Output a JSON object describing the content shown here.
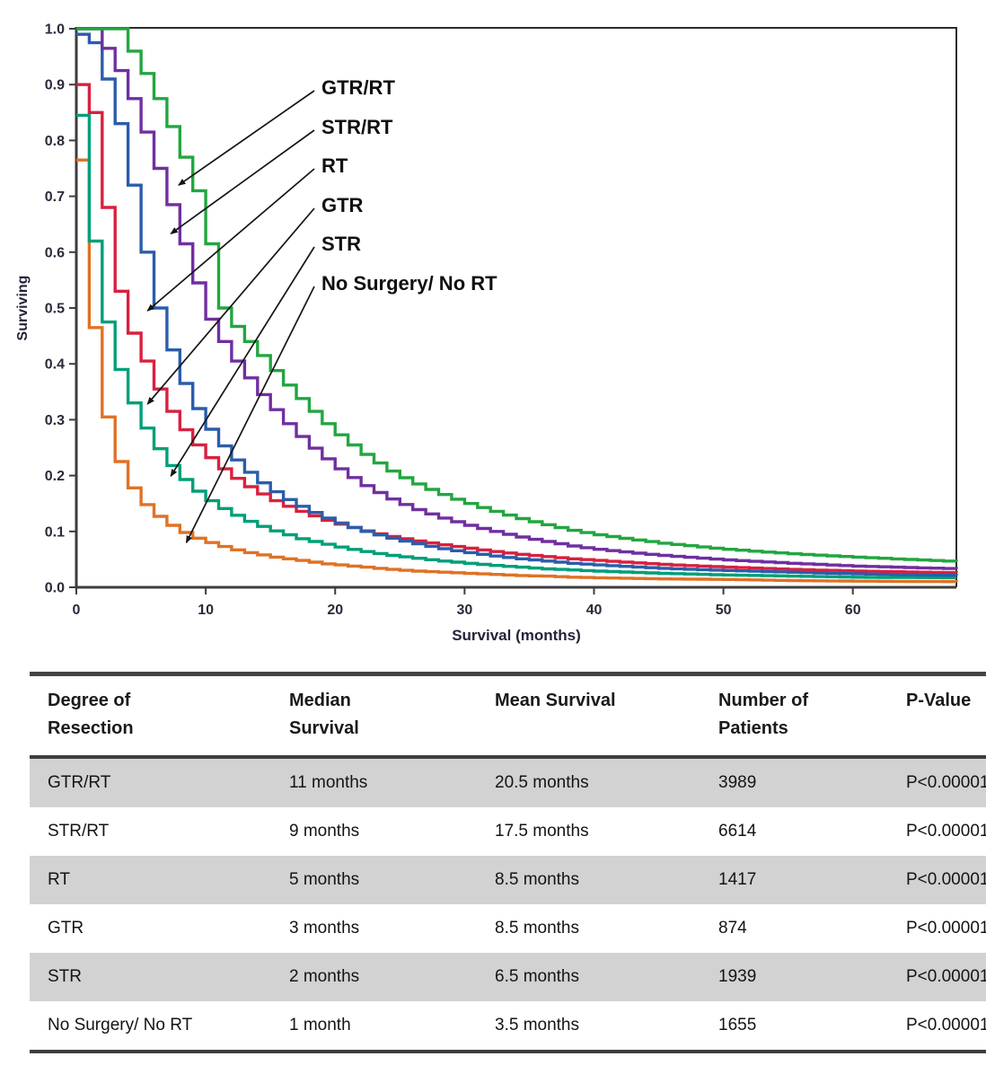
{
  "chart_data": {
    "type": "line",
    "subtype": "kaplan_meier_step_curves",
    "title": "",
    "xlabel": "Survival (months)",
    "ylabel": "Surviving",
    "xlim": [
      0,
      68
    ],
    "ylim": [
      0.0,
      1.0
    ],
    "grid": false,
    "legend_position": "inline-arrow-annotations",
    "xticks": [
      0,
      10,
      20,
      30,
      40,
      50,
      60
    ],
    "xtick_labels": [
      "0",
      "10",
      "20",
      "30",
      "40",
      "50",
      "60"
    ],
    "yticks": [
      0.0,
      0.1,
      0.2,
      0.3,
      0.4,
      0.5,
      0.6,
      0.7,
      0.8,
      0.9,
      1.0
    ],
    "ytick_labels": [
      "0.0",
      "0.1",
      "0.2",
      "0.3",
      "0.4",
      "0.5",
      "0.6",
      "0.7",
      "0.8",
      "0.9",
      "1.0"
    ],
    "series": [
      {
        "name": "GTR/RT",
        "color": "#22a640",
        "median_months": 11,
        "points": [
          [
            0,
            1.0
          ],
          [
            3,
            1.0
          ],
          [
            4,
            0.96
          ],
          [
            5,
            0.92
          ],
          [
            6,
            0.875
          ],
          [
            7,
            0.825
          ],
          [
            8,
            0.77
          ],
          [
            9,
            0.71
          ],
          [
            10,
            0.615
          ],
          [
            11,
            0.5
          ],
          [
            12,
            0.467
          ],
          [
            13,
            0.44
          ],
          [
            14,
            0.415
          ],
          [
            15,
            0.388
          ],
          [
            16,
            0.362
          ],
          [
            17,
            0.338
          ],
          [
            18,
            0.315
          ],
          [
            19,
            0.293
          ],
          [
            20,
            0.273
          ],
          [
            22,
            0.238
          ],
          [
            24,
            0.208
          ],
          [
            26,
            0.185
          ],
          [
            28,
            0.166
          ],
          [
            30,
            0.15
          ],
          [
            32,
            0.136
          ],
          [
            34,
            0.123
          ],
          [
            36,
            0.112
          ],
          [
            38,
            0.102
          ],
          [
            40,
            0.094
          ],
          [
            45,
            0.079
          ],
          [
            50,
            0.068
          ],
          [
            55,
            0.06
          ],
          [
            60,
            0.054
          ],
          [
            68,
            0.046
          ]
        ]
      },
      {
        "name": "STR/RT",
        "color": "#6f2fa0",
        "median_months": 9,
        "points": [
          [
            0,
            1.0
          ],
          [
            1,
            1.0
          ],
          [
            2,
            0.965
          ],
          [
            3,
            0.925
          ],
          [
            4,
            0.875
          ],
          [
            5,
            0.815
          ],
          [
            6,
            0.75
          ],
          [
            7,
            0.685
          ],
          [
            8,
            0.615
          ],
          [
            9,
            0.545
          ],
          [
            10,
            0.48
          ],
          [
            11,
            0.44
          ],
          [
            12,
            0.405
          ],
          [
            13,
            0.375
          ],
          [
            14,
            0.345
          ],
          [
            15,
            0.318
          ],
          [
            16,
            0.293
          ],
          [
            17,
            0.27
          ],
          [
            18,
            0.249
          ],
          [
            19,
            0.23
          ],
          [
            20,
            0.212
          ],
          [
            22,
            0.182
          ],
          [
            24,
            0.158
          ],
          [
            26,
            0.139
          ],
          [
            28,
            0.124
          ],
          [
            30,
            0.111
          ],
          [
            32,
            0.1
          ],
          [
            34,
            0.09
          ],
          [
            36,
            0.082
          ],
          [
            38,
            0.074
          ],
          [
            40,
            0.068
          ],
          [
            45,
            0.057
          ],
          [
            50,
            0.049
          ],
          [
            55,
            0.043
          ],
          [
            60,
            0.038
          ],
          [
            68,
            0.033
          ]
        ]
      },
      {
        "name": "RT",
        "color": "#2a5dab",
        "median_months": 5,
        "points": [
          [
            0,
            0.99
          ],
          [
            1,
            0.975
          ],
          [
            2,
            0.91
          ],
          [
            3,
            0.83
          ],
          [
            4,
            0.72
          ],
          [
            5,
            0.6
          ],
          [
            6,
            0.5
          ],
          [
            7,
            0.425
          ],
          [
            8,
            0.365
          ],
          [
            9,
            0.32
          ],
          [
            10,
            0.283
          ],
          [
            11,
            0.253
          ],
          [
            12,
            0.228
          ],
          [
            13,
            0.206
          ],
          [
            14,
            0.187
          ],
          [
            15,
            0.171
          ],
          [
            16,
            0.157
          ],
          [
            17,
            0.145
          ],
          [
            18,
            0.134
          ],
          [
            19,
            0.124
          ],
          [
            20,
            0.115
          ],
          [
            22,
            0.1
          ],
          [
            24,
            0.088
          ],
          [
            26,
            0.078
          ],
          [
            28,
            0.069
          ],
          [
            30,
            0.062
          ],
          [
            32,
            0.056
          ],
          [
            34,
            0.051
          ],
          [
            36,
            0.047
          ],
          [
            38,
            0.043
          ],
          [
            40,
            0.04
          ],
          [
            45,
            0.034
          ],
          [
            50,
            0.03
          ],
          [
            55,
            0.027
          ],
          [
            60,
            0.024
          ],
          [
            68,
            0.021
          ]
        ]
      },
      {
        "name": "GTR",
        "color": "#d9203f",
        "median_months": 3,
        "points": [
          [
            0,
            0.9
          ],
          [
            1,
            0.85
          ],
          [
            2,
            0.68
          ],
          [
            3,
            0.53
          ],
          [
            4,
            0.455
          ],
          [
            5,
            0.405
          ],
          [
            6,
            0.355
          ],
          [
            7,
            0.315
          ],
          [
            8,
            0.282
          ],
          [
            9,
            0.255
          ],
          [
            10,
            0.232
          ],
          [
            11,
            0.212
          ],
          [
            12,
            0.195
          ],
          [
            13,
            0.18
          ],
          [
            14,
            0.167
          ],
          [
            15,
            0.155
          ],
          [
            16,
            0.145
          ],
          [
            17,
            0.136
          ],
          [
            18,
            0.128
          ],
          [
            19,
            0.12
          ],
          [
            20,
            0.113
          ],
          [
            22,
            0.101
          ],
          [
            24,
            0.091
          ],
          [
            26,
            0.083
          ],
          [
            28,
            0.076
          ],
          [
            30,
            0.07
          ],
          [
            32,
            0.064
          ],
          [
            34,
            0.059
          ],
          [
            36,
            0.055
          ],
          [
            38,
            0.051
          ],
          [
            40,
            0.048
          ],
          [
            45,
            0.041
          ],
          [
            50,
            0.036
          ],
          [
            55,
            0.032
          ],
          [
            60,
            0.029
          ],
          [
            68,
            0.026
          ]
        ]
      },
      {
        "name": "STR",
        "color": "#009f78",
        "median_months": 2,
        "points": [
          [
            0,
            0.845
          ],
          [
            1,
            0.62
          ],
          [
            2,
            0.475
          ],
          [
            3,
            0.39
          ],
          [
            4,
            0.33
          ],
          [
            5,
            0.285
          ],
          [
            6,
            0.248
          ],
          [
            7,
            0.218
          ],
          [
            8,
            0.193
          ],
          [
            9,
            0.172
          ],
          [
            10,
            0.155
          ],
          [
            11,
            0.141
          ],
          [
            12,
            0.129
          ],
          [
            13,
            0.118
          ],
          [
            14,
            0.109
          ],
          [
            15,
            0.101
          ],
          [
            16,
            0.094
          ],
          [
            17,
            0.087
          ],
          [
            18,
            0.082
          ],
          [
            19,
            0.077
          ],
          [
            20,
            0.072
          ],
          [
            22,
            0.064
          ],
          [
            24,
            0.057
          ],
          [
            26,
            0.052
          ],
          [
            28,
            0.047
          ],
          [
            30,
            0.043
          ],
          [
            32,
            0.039
          ],
          [
            34,
            0.036
          ],
          [
            36,
            0.033
          ],
          [
            38,
            0.031
          ],
          [
            40,
            0.029
          ],
          [
            45,
            0.025
          ],
          [
            50,
            0.022
          ],
          [
            55,
            0.02
          ],
          [
            60,
            0.018
          ],
          [
            68,
            0.017
          ]
        ]
      },
      {
        "name": "No Surgery/ No RT",
        "color": "#df7225",
        "median_months": 1,
        "points": [
          [
            0,
            0.765
          ],
          [
            1,
            0.465
          ],
          [
            2,
            0.305
          ],
          [
            3,
            0.225
          ],
          [
            4,
            0.178
          ],
          [
            5,
            0.148
          ],
          [
            6,
            0.127
          ],
          [
            7,
            0.111
          ],
          [
            8,
            0.098
          ],
          [
            9,
            0.088
          ],
          [
            10,
            0.08
          ],
          [
            11,
            0.073
          ],
          [
            12,
            0.067
          ],
          [
            13,
            0.062
          ],
          [
            14,
            0.058
          ],
          [
            15,
            0.054
          ],
          [
            16,
            0.051
          ],
          [
            17,
            0.048
          ],
          [
            18,
            0.045
          ],
          [
            19,
            0.042
          ],
          [
            20,
            0.04
          ],
          [
            22,
            0.036
          ],
          [
            24,
            0.032
          ],
          [
            26,
            0.029
          ],
          [
            28,
            0.027
          ],
          [
            30,
            0.025
          ],
          [
            32,
            0.023
          ],
          [
            34,
            0.021
          ],
          [
            36,
            0.02
          ],
          [
            38,
            0.018
          ],
          [
            40,
            0.017
          ],
          [
            45,
            0.015
          ],
          [
            50,
            0.014
          ],
          [
            55,
            0.012
          ],
          [
            60,
            0.011
          ],
          [
            68,
            0.01
          ]
        ]
      }
    ],
    "annotations": [
      {
        "label": "GTR/RT",
        "tip_x": 7.9,
        "tip_y": 0.72
      },
      {
        "label": "STR/RT",
        "tip_x": 7.3,
        "tip_y": 0.633
      },
      {
        "label": "RT",
        "tip_x": 5.5,
        "tip_y": 0.495
      },
      {
        "label": "GTR",
        "tip_x": 5.5,
        "tip_y": 0.328
      },
      {
        "label": "STR",
        "tip_x": 7.3,
        "tip_y": 0.199
      },
      {
        "label": "No Surgery/ No RT",
        "tip_x": 8.5,
        "tip_y": 0.08
      }
    ]
  },
  "table": {
    "headers": [
      "Degree of\nResection",
      "Median\nSurvival",
      "Mean Survival",
      "Number of\nPatients",
      "P-Value"
    ],
    "rows": [
      [
        "GTR/RT",
        "11 months",
        "20.5 months",
        "3989",
        "P<0.00001"
      ],
      [
        "STR/RT",
        "9 months",
        "17.5 months",
        "6614",
        "P<0.00001"
      ],
      [
        "RT",
        "5 months",
        "8.5 months",
        "1417",
        "P<0.00001"
      ],
      [
        "GTR",
        "3 months",
        "8.5 months",
        "874",
        "P<0.00001"
      ],
      [
        "STR",
        "2 months",
        "6.5 months",
        "1939",
        "P<0.00001"
      ],
      [
        "No Surgery/ No RT",
        "1 month",
        "3.5 months",
        "1655",
        "P<0.00001"
      ]
    ],
    "shaded_row_color": "#d2d2d2"
  }
}
